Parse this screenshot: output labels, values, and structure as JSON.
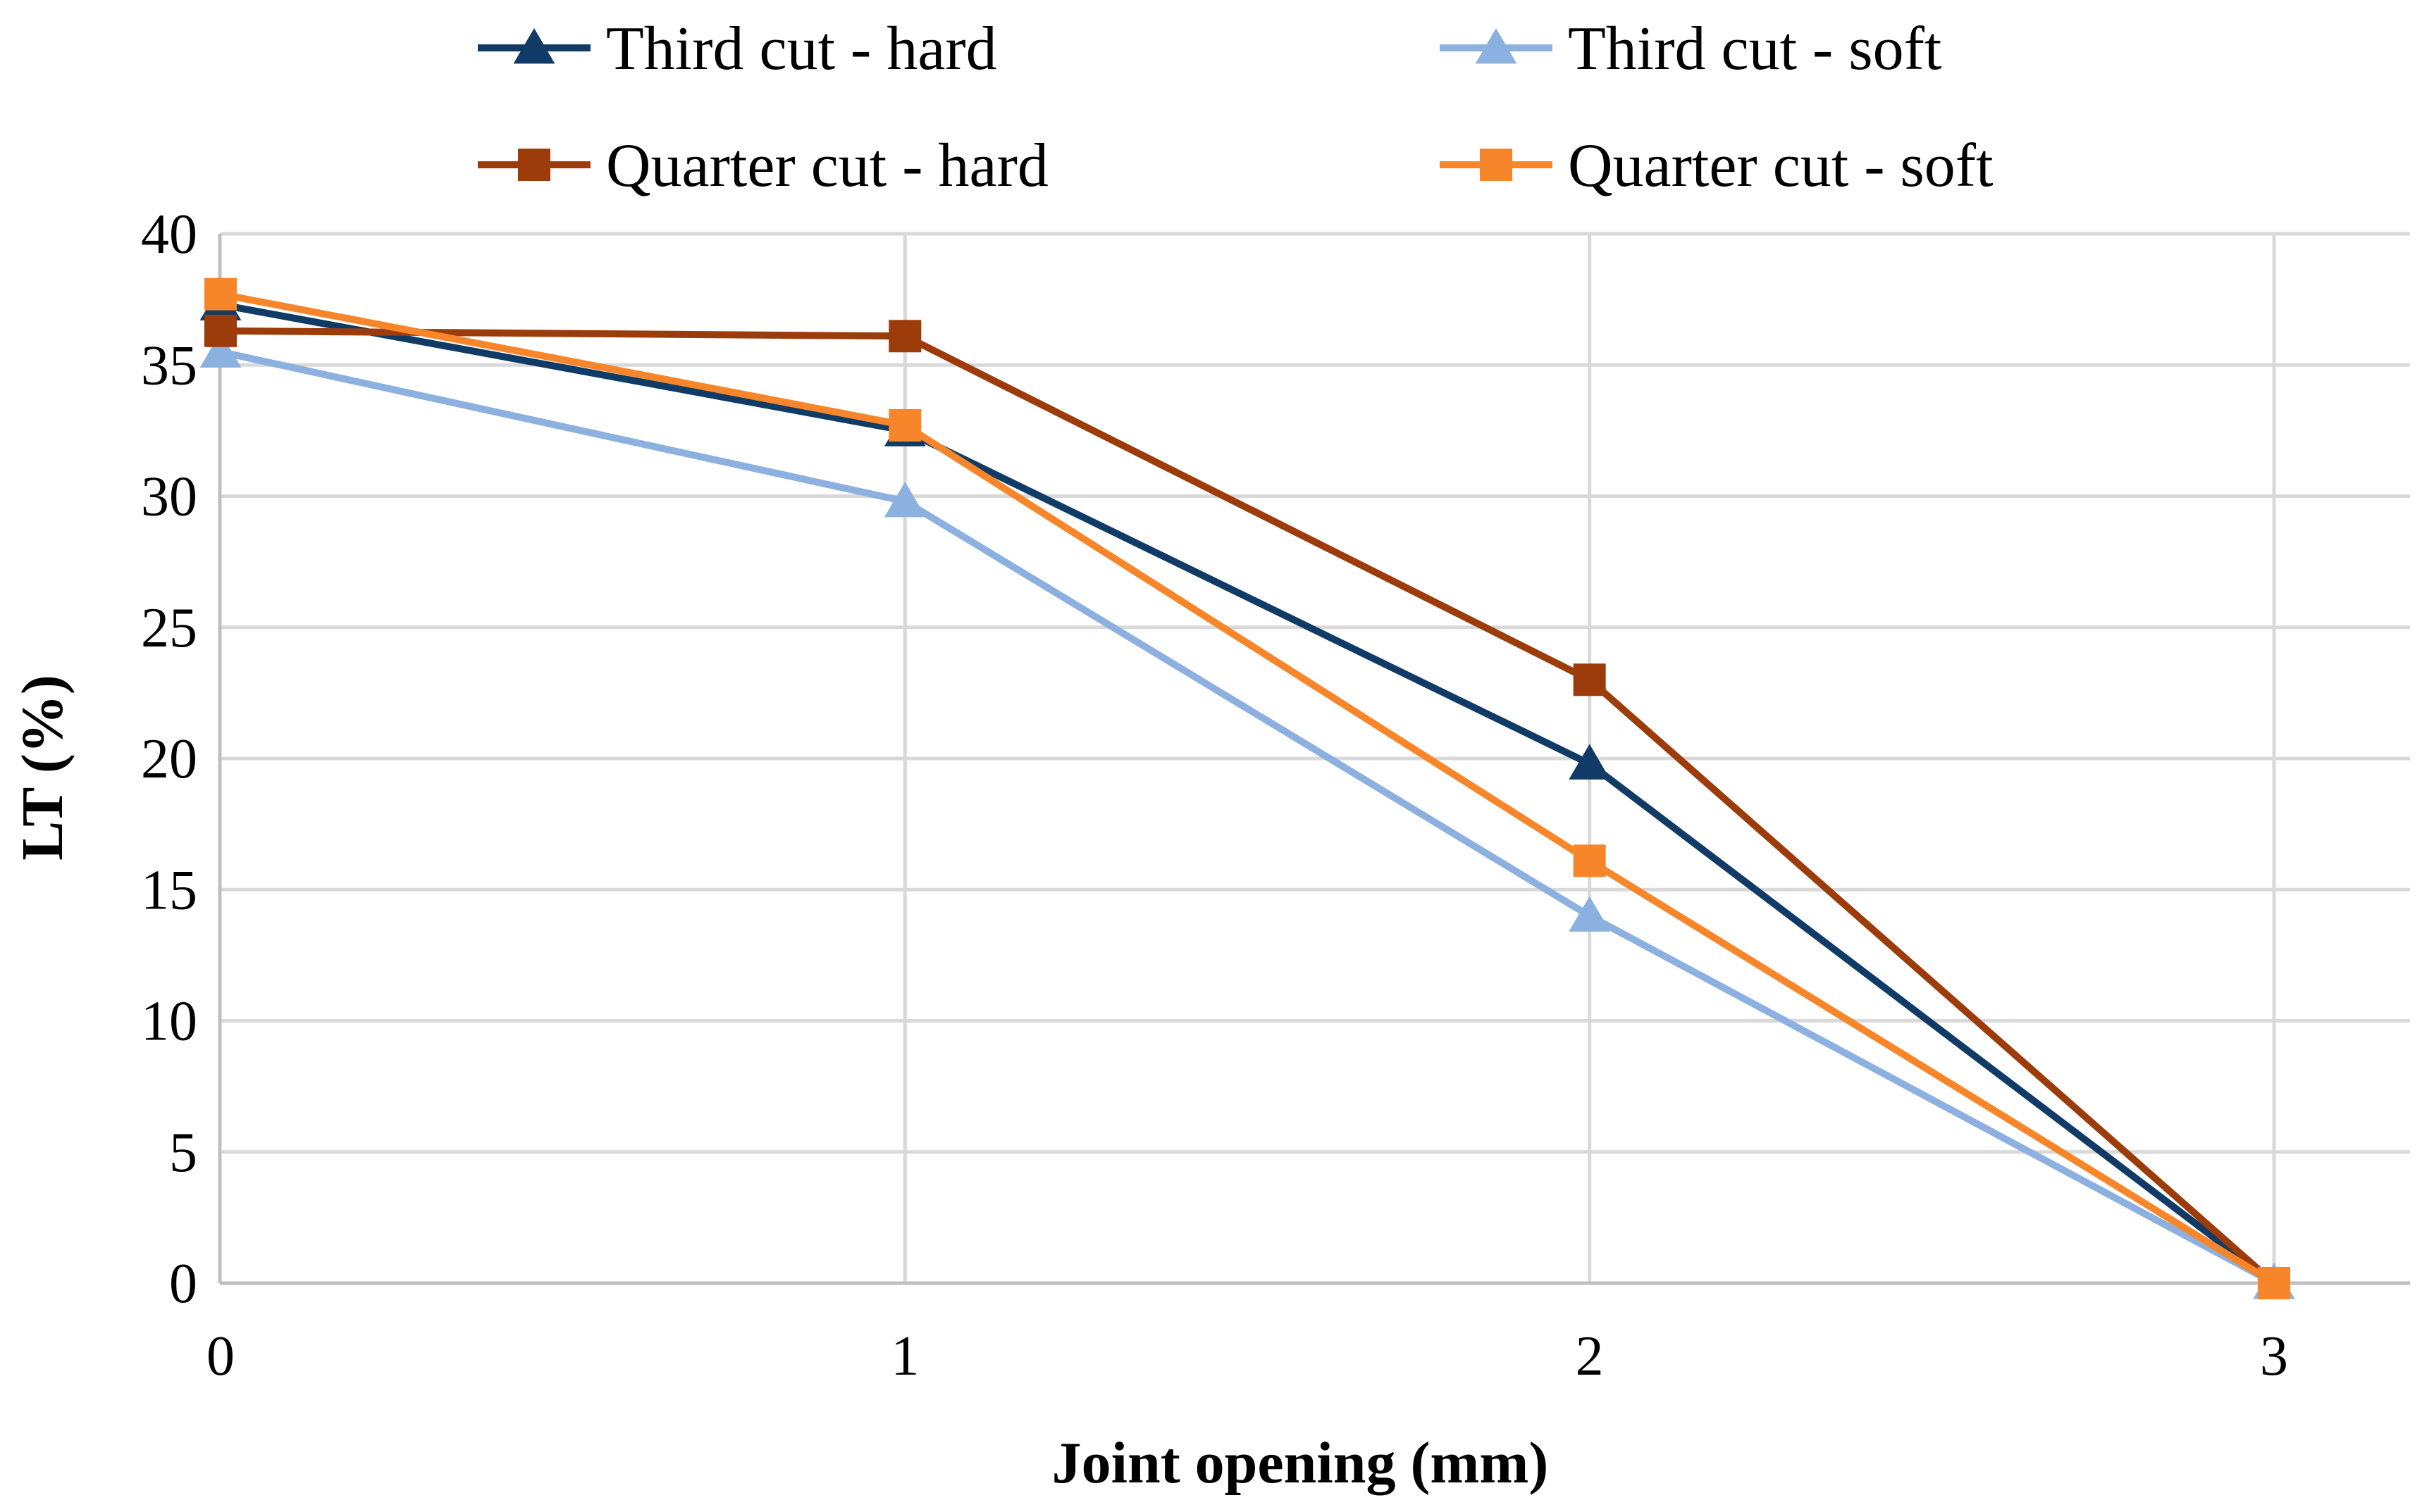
{
  "chart_data": {
    "type": "line",
    "title": "",
    "xlabel": "Joint opening (mm)",
    "ylabel": "LT (%)",
    "x": [
      0,
      1,
      2,
      3
    ],
    "xlim": [
      0,
      3
    ],
    "ylim": [
      0,
      40
    ],
    "yticks": [
      0,
      5,
      10,
      15,
      20,
      25,
      30,
      35,
      40
    ],
    "xticks": [
      0,
      1,
      2,
      3
    ],
    "grid": true,
    "legend_position": "top",
    "series": [
      {
        "name": "Third cut - hard",
        "values": [
          37.3,
          32.5,
          19.8,
          0
        ],
        "color": "#0F3B66",
        "marker": "triangle"
      },
      {
        "name": "Third cut - soft",
        "values": [
          35.5,
          29.8,
          14.0,
          0
        ],
        "color": "#8CB0DF",
        "marker": "triangle"
      },
      {
        "name": "Quarter cut - hard",
        "values": [
          36.3,
          36.1,
          23.0,
          0
        ],
        "color": "#9C3C0B",
        "marker": "square"
      },
      {
        "name": "Quarter cut - soft",
        "values": [
          37.7,
          32.7,
          16.1,
          0
        ],
        "color": "#F7862B",
        "marker": "square"
      }
    ]
  }
}
